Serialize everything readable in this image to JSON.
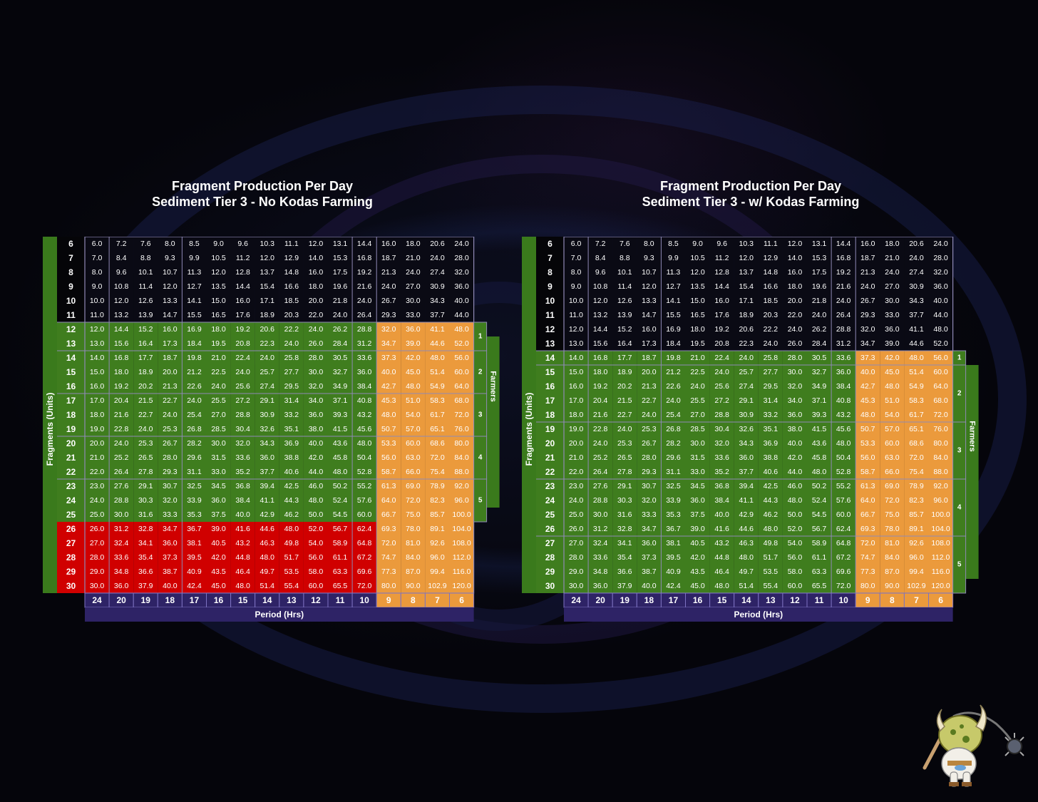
{
  "colors": {
    "header_bg": "#2e2366",
    "header_border": "#7d72c2",
    "white_zone": "#0a0a14",
    "green_zone": "#3f7d1e",
    "green_side": "#3a7a1c",
    "red_zone": "#d00000",
    "orange_zone": "#eb9a3c",
    "grid_line": "#8f89b6",
    "text": "#ffffff"
  },
  "icons": {
    "mascot": "koda-mascot-icon"
  },
  "chart_data": [
    {
      "type": "table",
      "title": "Fragment Production Per Day",
      "subtitle": "Sediment Tier 3 - No Kodas Farming",
      "ylabel": "Fragments (Units)",
      "xlabel": "Period (Hrs)",
      "farmers_label": "Farmers",
      "rows": [
        6,
        7,
        8,
        9,
        10,
        11,
        12,
        13,
        14,
        15,
        16,
        17,
        18,
        19,
        20,
        21,
        22,
        23,
        24,
        25,
        26,
        27,
        28,
        29,
        30
      ],
      "periods": [
        24,
        20,
        19,
        18,
        17,
        16,
        15,
        14,
        13,
        12,
        11,
        10,
        9,
        8,
        7,
        6
      ],
      "cells": [
        [
          "6.0",
          "7.2",
          "7.6",
          "8.0",
          "8.5",
          "9.0",
          "9.6",
          "10.3",
          "11.1",
          "12.0",
          "13.1",
          "14.4",
          "16.0",
          "18.0",
          "20.6",
          "24.0"
        ],
        [
          "7.0",
          "8.4",
          "8.8",
          "9.3",
          "9.9",
          "10.5",
          "11.2",
          "12.0",
          "12.9",
          "14.0",
          "15.3",
          "16.8",
          "18.7",
          "21.0",
          "24.0",
          "28.0"
        ],
        [
          "8.0",
          "9.6",
          "10.1",
          "10.7",
          "11.3",
          "12.0",
          "12.8",
          "13.7",
          "14.8",
          "16.0",
          "17.5",
          "19.2",
          "21.3",
          "24.0",
          "27.4",
          "32.0"
        ],
        [
          "9.0",
          "10.8",
          "11.4",
          "12.0",
          "12.7",
          "13.5",
          "14.4",
          "15.4",
          "16.6",
          "18.0",
          "19.6",
          "21.6",
          "24.0",
          "27.0",
          "30.9",
          "36.0"
        ],
        [
          "10.0",
          "12.0",
          "12.6",
          "13.3",
          "14.1",
          "15.0",
          "16.0",
          "17.1",
          "18.5",
          "20.0",
          "21.8",
          "24.0",
          "26.7",
          "30.0",
          "34.3",
          "40.0"
        ],
        [
          "11.0",
          "13.2",
          "13.9",
          "14.7",
          "15.5",
          "16.5",
          "17.6",
          "18.9",
          "20.3",
          "22.0",
          "24.0",
          "26.4",
          "29.3",
          "33.0",
          "37.7",
          "44.0"
        ],
        [
          "12.0",
          "14.4",
          "15.2",
          "16.0",
          "16.9",
          "18.0",
          "19.2",
          "20.6",
          "22.2",
          "24.0",
          "26.2",
          "28.8",
          "32.0",
          "36.0",
          "41.1",
          "48.0"
        ],
        [
          "13.0",
          "15.6",
          "16.4",
          "17.3",
          "18.4",
          "19.5",
          "20.8",
          "22.3",
          "24.0",
          "26.0",
          "28.4",
          "31.2",
          "34.7",
          "39.0",
          "44.6",
          "52.0"
        ],
        [
          "14.0",
          "16.8",
          "17.7",
          "18.7",
          "19.8",
          "21.0",
          "22.4",
          "24.0",
          "25.8",
          "28.0",
          "30.5",
          "33.6",
          "37.3",
          "42.0",
          "48.0",
          "56.0"
        ],
        [
          "15.0",
          "18.0",
          "18.9",
          "20.0",
          "21.2",
          "22.5",
          "24.0",
          "25.7",
          "27.7",
          "30.0",
          "32.7",
          "36.0",
          "40.0",
          "45.0",
          "51.4",
          "60.0"
        ],
        [
          "16.0",
          "19.2",
          "20.2",
          "21.3",
          "22.6",
          "24.0",
          "25.6",
          "27.4",
          "29.5",
          "32.0",
          "34.9",
          "38.4",
          "42.7",
          "48.0",
          "54.9",
          "64.0"
        ],
        [
          "17.0",
          "20.4",
          "21.5",
          "22.7",
          "24.0",
          "25.5",
          "27.2",
          "29.1",
          "31.4",
          "34.0",
          "37.1",
          "40.8",
          "45.3",
          "51.0",
          "58.3",
          "68.0"
        ],
        [
          "18.0",
          "21.6",
          "22.7",
          "24.0",
          "25.4",
          "27.0",
          "28.8",
          "30.9",
          "33.2",
          "36.0",
          "39.3",
          "43.2",
          "48.0",
          "54.0",
          "61.7",
          "72.0"
        ],
        [
          "19.0",
          "22.8",
          "24.0",
          "25.3",
          "26.8",
          "28.5",
          "30.4",
          "32.6",
          "35.1",
          "38.0",
          "41.5",
          "45.6",
          "50.7",
          "57.0",
          "65.1",
          "76.0"
        ],
        [
          "20.0",
          "24.0",
          "25.3",
          "26.7",
          "28.2",
          "30.0",
          "32.0",
          "34.3",
          "36.9",
          "40.0",
          "43.6",
          "48.0",
          "53.3",
          "60.0",
          "68.6",
          "80.0"
        ],
        [
          "21.0",
          "25.2",
          "26.5",
          "28.0",
          "29.6",
          "31.5",
          "33.6",
          "36.0",
          "38.8",
          "42.0",
          "45.8",
          "50.4",
          "56.0",
          "63.0",
          "72.0",
          "84.0"
        ],
        [
          "22.0",
          "26.4",
          "27.8",
          "29.3",
          "31.1",
          "33.0",
          "35.2",
          "37.7",
          "40.6",
          "44.0",
          "48.0",
          "52.8",
          "58.7",
          "66.0",
          "75.4",
          "88.0"
        ],
        [
          "23.0",
          "27.6",
          "29.1",
          "30.7",
          "32.5",
          "34.5",
          "36.8",
          "39.4",
          "42.5",
          "46.0",
          "50.2",
          "55.2",
          "61.3",
          "69.0",
          "78.9",
          "92.0"
        ],
        [
          "24.0",
          "28.8",
          "30.3",
          "32.0",
          "33.9",
          "36.0",
          "38.4",
          "41.1",
          "44.3",
          "48.0",
          "52.4",
          "57.6",
          "64.0",
          "72.0",
          "82.3",
          "96.0"
        ],
        [
          "25.0",
          "30.0",
          "31.6",
          "33.3",
          "35.3",
          "37.5",
          "40.0",
          "42.9",
          "46.2",
          "50.0",
          "54.5",
          "60.0",
          "66.7",
          "75.0",
          "85.7",
          "100.0"
        ],
        [
          "26.0",
          "31.2",
          "32.8",
          "34.7",
          "36.7",
          "39.0",
          "41.6",
          "44.6",
          "48.0",
          "52.0",
          "56.7",
          "62.4",
          "69.3",
          "78.0",
          "89.1",
          "104.0"
        ],
        [
          "27.0",
          "32.4",
          "34.1",
          "36.0",
          "38.1",
          "40.5",
          "43.2",
          "46.3",
          "49.8",
          "54.0",
          "58.9",
          "64.8",
          "72.0",
          "81.0",
          "92.6",
          "108.0"
        ],
        [
          "28.0",
          "33.6",
          "35.4",
          "37.3",
          "39.5",
          "42.0",
          "44.8",
          "48.0",
          "51.7",
          "56.0",
          "61.1",
          "67.2",
          "74.7",
          "84.0",
          "96.0",
          "112.0"
        ],
        [
          "29.0",
          "34.8",
          "36.6",
          "38.7",
          "40.9",
          "43.5",
          "46.4",
          "49.7",
          "53.5",
          "58.0",
          "63.3",
          "69.6",
          "77.3",
          "87.0",
          "99.4",
          "116.0"
        ],
        [
          "30.0",
          "36.0",
          "37.9",
          "40.0",
          "42.4",
          "45.0",
          "48.0",
          "51.4",
          "55.4",
          "60.0",
          "65.5",
          "72.0",
          "80.0",
          "90.0",
          "102.9",
          "120.0"
        ]
      ],
      "green_rows": [
        12,
        25
      ],
      "red_rows": [
        26,
        30
      ],
      "orange_cols": [
        9,
        6
      ],
      "farmer_groups": [
        {
          "label": "1",
          "rows": [
            12,
            13
          ]
        },
        {
          "label": "2",
          "rows": [
            14,
            16
          ]
        },
        {
          "label": "3",
          "rows": [
            17,
            19
          ]
        },
        {
          "label": "4",
          "rows": [
            20,
            22
          ]
        },
        {
          "label": "5",
          "rows": [
            23,
            25
          ]
        }
      ]
    },
    {
      "type": "table",
      "title": "Fragment Production Per Day",
      "subtitle": "Sediment Tier 3 - w/ Kodas Farming",
      "ylabel": "Fragments (Units)",
      "xlabel": "Period (Hrs)",
      "farmers_label": "Farmers",
      "rows": [
        6,
        7,
        8,
        9,
        10,
        11,
        12,
        13,
        14,
        15,
        16,
        17,
        18,
        19,
        20,
        21,
        22,
        23,
        24,
        25,
        26,
        27,
        28,
        29,
        30
      ],
      "periods": [
        24,
        20,
        19,
        18,
        17,
        16,
        15,
        14,
        13,
        12,
        11,
        10,
        9,
        8,
        7,
        6
      ],
      "cells": [
        [
          "6.0",
          "7.2",
          "7.6",
          "8.0",
          "8.5",
          "9.0",
          "9.6",
          "10.3",
          "11.1",
          "12.0",
          "13.1",
          "14.4",
          "16.0",
          "18.0",
          "20.6",
          "24.0"
        ],
        [
          "7.0",
          "8.4",
          "8.8",
          "9.3",
          "9.9",
          "10.5",
          "11.2",
          "12.0",
          "12.9",
          "14.0",
          "15.3",
          "16.8",
          "18.7",
          "21.0",
          "24.0",
          "28.0"
        ],
        [
          "8.0",
          "9.6",
          "10.1",
          "10.7",
          "11.3",
          "12.0",
          "12.8",
          "13.7",
          "14.8",
          "16.0",
          "17.5",
          "19.2",
          "21.3",
          "24.0",
          "27.4",
          "32.0"
        ],
        [
          "9.0",
          "10.8",
          "11.4",
          "12.0",
          "12.7",
          "13.5",
          "14.4",
          "15.4",
          "16.6",
          "18.0",
          "19.6",
          "21.6",
          "24.0",
          "27.0",
          "30.9",
          "36.0"
        ],
        [
          "10.0",
          "12.0",
          "12.6",
          "13.3",
          "14.1",
          "15.0",
          "16.0",
          "17.1",
          "18.5",
          "20.0",
          "21.8",
          "24.0",
          "26.7",
          "30.0",
          "34.3",
          "40.0"
        ],
        [
          "11.0",
          "13.2",
          "13.9",
          "14.7",
          "15.5",
          "16.5",
          "17.6",
          "18.9",
          "20.3",
          "22.0",
          "24.0",
          "26.4",
          "29.3",
          "33.0",
          "37.7",
          "44.0"
        ],
        [
          "12.0",
          "14.4",
          "15.2",
          "16.0",
          "16.9",
          "18.0",
          "19.2",
          "20.6",
          "22.2",
          "24.0",
          "26.2",
          "28.8",
          "32.0",
          "36.0",
          "41.1",
          "48.0"
        ],
        [
          "13.0",
          "15.6",
          "16.4",
          "17.3",
          "18.4",
          "19.5",
          "20.8",
          "22.3",
          "24.0",
          "26.0",
          "28.4",
          "31.2",
          "34.7",
          "39.0",
          "44.6",
          "52.0"
        ],
        [
          "14.0",
          "16.8",
          "17.7",
          "18.7",
          "19.8",
          "21.0",
          "22.4",
          "24.0",
          "25.8",
          "28.0",
          "30.5",
          "33.6",
          "37.3",
          "42.0",
          "48.0",
          "56.0"
        ],
        [
          "15.0",
          "18.0",
          "18.9",
          "20.0",
          "21.2",
          "22.5",
          "24.0",
          "25.7",
          "27.7",
          "30.0",
          "32.7",
          "36.0",
          "40.0",
          "45.0",
          "51.4",
          "60.0"
        ],
        [
          "16.0",
          "19.2",
          "20.2",
          "21.3",
          "22.6",
          "24.0",
          "25.6",
          "27.4",
          "29.5",
          "32.0",
          "34.9",
          "38.4",
          "42.7",
          "48.0",
          "54.9",
          "64.0"
        ],
        [
          "17.0",
          "20.4",
          "21.5",
          "22.7",
          "24.0",
          "25.5",
          "27.2",
          "29.1",
          "31.4",
          "34.0",
          "37.1",
          "40.8",
          "45.3",
          "51.0",
          "58.3",
          "68.0"
        ],
        [
          "18.0",
          "21.6",
          "22.7",
          "24.0",
          "25.4",
          "27.0",
          "28.8",
          "30.9",
          "33.2",
          "36.0",
          "39.3",
          "43.2",
          "48.0",
          "54.0",
          "61.7",
          "72.0"
        ],
        [
          "19.0",
          "22.8",
          "24.0",
          "25.3",
          "26.8",
          "28.5",
          "30.4",
          "32.6",
          "35.1",
          "38.0",
          "41.5",
          "45.6",
          "50.7",
          "57.0",
          "65.1",
          "76.0"
        ],
        [
          "20.0",
          "24.0",
          "25.3",
          "26.7",
          "28.2",
          "30.0",
          "32.0",
          "34.3",
          "36.9",
          "40.0",
          "43.6",
          "48.0",
          "53.3",
          "60.0",
          "68.6",
          "80.0"
        ],
        [
          "21.0",
          "25.2",
          "26.5",
          "28.0",
          "29.6",
          "31.5",
          "33.6",
          "36.0",
          "38.8",
          "42.0",
          "45.8",
          "50.4",
          "56.0",
          "63.0",
          "72.0",
          "84.0"
        ],
        [
          "22.0",
          "26.4",
          "27.8",
          "29.3",
          "31.1",
          "33.0",
          "35.2",
          "37.7",
          "40.6",
          "44.0",
          "48.0",
          "52.8",
          "58.7",
          "66.0",
          "75.4",
          "88.0"
        ],
        [
          "23.0",
          "27.6",
          "29.1",
          "30.7",
          "32.5",
          "34.5",
          "36.8",
          "39.4",
          "42.5",
          "46.0",
          "50.2",
          "55.2",
          "61.3",
          "69.0",
          "78.9",
          "92.0"
        ],
        [
          "24.0",
          "28.8",
          "30.3",
          "32.0",
          "33.9",
          "36.0",
          "38.4",
          "41.1",
          "44.3",
          "48.0",
          "52.4",
          "57.6",
          "64.0",
          "72.0",
          "82.3",
          "96.0"
        ],
        [
          "25.0",
          "30.0",
          "31.6",
          "33.3",
          "35.3",
          "37.5",
          "40.0",
          "42.9",
          "46.2",
          "50.0",
          "54.5",
          "60.0",
          "66.7",
          "75.0",
          "85.7",
          "100.0"
        ],
        [
          "26.0",
          "31.2",
          "32.8",
          "34.7",
          "36.7",
          "39.0",
          "41.6",
          "44.6",
          "48.0",
          "52.0",
          "56.7",
          "62.4",
          "69.3",
          "78.0",
          "89.1",
          "104.0"
        ],
        [
          "27.0",
          "32.4",
          "34.1",
          "36.0",
          "38.1",
          "40.5",
          "43.2",
          "46.3",
          "49.8",
          "54.0",
          "58.9",
          "64.8",
          "72.0",
          "81.0",
          "92.6",
          "108.0"
        ],
        [
          "28.0",
          "33.6",
          "35.4",
          "37.3",
          "39.5",
          "42.0",
          "44.8",
          "48.0",
          "51.7",
          "56.0",
          "61.1",
          "67.2",
          "74.7",
          "84.0",
          "96.0",
          "112.0"
        ],
        [
          "29.0",
          "34.8",
          "36.6",
          "38.7",
          "40.9",
          "43.5",
          "46.4",
          "49.7",
          "53.5",
          "58.0",
          "63.3",
          "69.6",
          "77.3",
          "87.0",
          "99.4",
          "116.0"
        ],
        [
          "30.0",
          "36.0",
          "37.9",
          "40.0",
          "42.4",
          "45.0",
          "48.0",
          "51.4",
          "55.4",
          "60.0",
          "65.5",
          "72.0",
          "80.0",
          "90.0",
          "102.9",
          "120.0"
        ]
      ],
      "green_rows": [
        14,
        30
      ],
      "red_rows": [],
      "orange_cols": [
        9,
        6
      ],
      "farmer_groups": [
        {
          "label": "1",
          "rows": [
            14,
            14
          ]
        },
        {
          "label": "2",
          "rows": [
            15,
            18
          ]
        },
        {
          "label": "3",
          "rows": [
            19,
            22
          ]
        },
        {
          "label": "4",
          "rows": [
            23,
            26
          ]
        },
        {
          "label": "5",
          "rows": [
            27,
            30
          ]
        }
      ]
    }
  ]
}
